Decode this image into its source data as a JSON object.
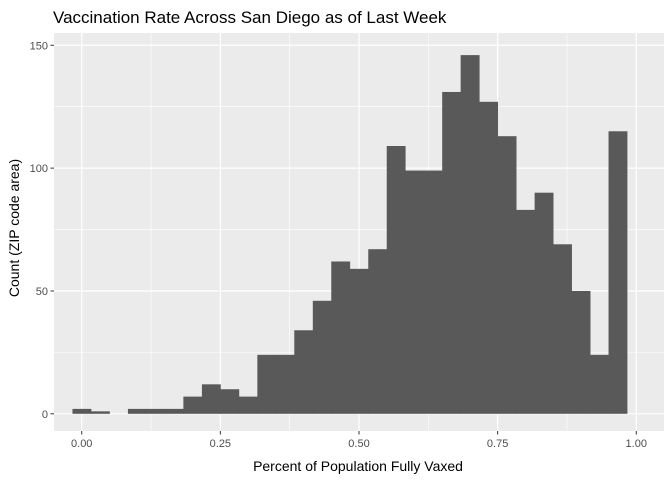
{
  "chart_data": {
    "type": "bar",
    "subtype": "histogram",
    "title": "Vaccination Rate Across San Diego as of Last Week",
    "xlabel": "Percent of Population Fully Vaxed",
    "ylabel": "Count (ZIP code area)",
    "xlim": [
      -0.05,
      1.05
    ],
    "ylim": [
      -7,
      155
    ],
    "x_ticks": [
      0.0,
      0.25,
      0.5,
      0.75,
      1.0
    ],
    "x_tick_labels": [
      "0.00",
      "0.25",
      "0.50",
      "0.75",
      "1.00"
    ],
    "y_ticks": [
      0,
      50,
      100,
      150
    ],
    "y_tick_labels": [
      "0",
      "50",
      "100",
      "150"
    ],
    "bin_width": 0.0333,
    "bins": [
      {
        "x0": -0.0167,
        "x1": 0.0167,
        "count": 2
      },
      {
        "x0": 0.0167,
        "x1": 0.05,
        "count": 1
      },
      {
        "x0": 0.05,
        "x1": 0.0833,
        "count": 0
      },
      {
        "x0": 0.0833,
        "x1": 0.1167,
        "count": 2
      },
      {
        "x0": 0.1167,
        "x1": 0.15,
        "count": 2
      },
      {
        "x0": 0.15,
        "x1": 0.1833,
        "count": 2
      },
      {
        "x0": 0.1833,
        "x1": 0.2167,
        "count": 7
      },
      {
        "x0": 0.2167,
        "x1": 0.25,
        "count": 12
      },
      {
        "x0": 0.25,
        "x1": 0.2833,
        "count": 10
      },
      {
        "x0": 0.2833,
        "x1": 0.3167,
        "count": 7
      },
      {
        "x0": 0.3167,
        "x1": 0.35,
        "count": 24
      },
      {
        "x0": 0.35,
        "x1": 0.3833,
        "count": 24
      },
      {
        "x0": 0.3833,
        "x1": 0.4167,
        "count": 34
      },
      {
        "x0": 0.4167,
        "x1": 0.45,
        "count": 46
      },
      {
        "x0": 0.45,
        "x1": 0.4833,
        "count": 62
      },
      {
        "x0": 0.4833,
        "x1": 0.5167,
        "count": 59
      },
      {
        "x0": 0.5167,
        "x1": 0.55,
        "count": 67
      },
      {
        "x0": 0.55,
        "x1": 0.5833,
        "count": 109
      },
      {
        "x0": 0.5833,
        "x1": 0.6167,
        "count": 99
      },
      {
        "x0": 0.6167,
        "x1": 0.65,
        "count": 99
      },
      {
        "x0": 0.65,
        "x1": 0.6833,
        "count": 131
      },
      {
        "x0": 0.6833,
        "x1": 0.7167,
        "count": 146
      },
      {
        "x0": 0.7167,
        "x1": 0.75,
        "count": 127
      },
      {
        "x0": 0.75,
        "x1": 0.7833,
        "count": 113
      },
      {
        "x0": 0.7833,
        "x1": 0.8167,
        "count": 83
      },
      {
        "x0": 0.8167,
        "x1": 0.85,
        "count": 90
      },
      {
        "x0": 0.85,
        "x1": 0.8833,
        "count": 69
      },
      {
        "x0": 0.8833,
        "x1": 0.9167,
        "count": 50
      },
      {
        "x0": 0.9167,
        "x1": 0.95,
        "count": 24
      },
      {
        "x0": 0.95,
        "x1": 0.9833,
        "count": 115
      }
    ],
    "grid": true,
    "legend": "none",
    "colors": {
      "bar": "#595959",
      "panel_background": "#ebebeb",
      "grid_major": "#ffffff",
      "tick_text": "#4d4d4d"
    }
  }
}
